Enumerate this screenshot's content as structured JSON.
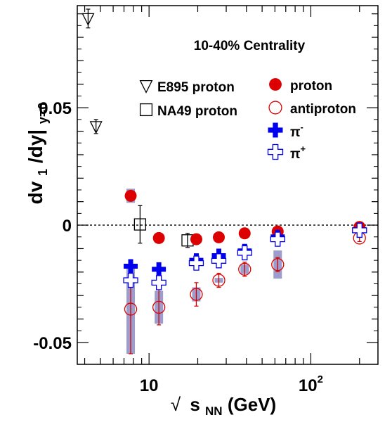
{
  "chart_data": {
    "type": "scatter",
    "title": "10-40% Centrality",
    "xlabel": {
      "root": "√",
      "main": "s",
      "sub": "NN",
      "unit": " (GeV)"
    },
    "ylabel": {
      "pre": "dv",
      "sub1": "1",
      "mid": "/dy|",
      "sub2": "y=0"
    },
    "x_scale": "log",
    "xlim": [
      3.6,
      260
    ],
    "ylim": [
      -0.0593,
      0.0935
    ],
    "x_tick_labels": [
      {
        "x": 10,
        "text": "10"
      },
      {
        "x": 100,
        "text": "10",
        "sup": "2"
      }
    ],
    "y_ticks": [
      {
        "y": 0.05,
        "text": "0.05"
      },
      {
        "y": 0,
        "text": "0"
      },
      {
        "y": -0.05,
        "text": "-0.05"
      }
    ],
    "zero_line": true,
    "legend": [
      {
        "marker": "tri-down-open",
        "text": "E895 proton"
      },
      {
        "marker": "square-open",
        "text": "NA49 proton"
      },
      {
        "marker": "circle-filled",
        "text": "proton"
      },
      {
        "marker": "circle-open",
        "text": "antiproton"
      },
      {
        "marker": "cross-filled",
        "text": "π",
        "sup": "-"
      },
      {
        "marker": "cross-open",
        "text": "π",
        "sup": "+"
      }
    ],
    "series": [
      {
        "name": "E895 proton",
        "marker": "tri-down-open",
        "color": "#000000",
        "points": [
          {
            "x": 4.2,
            "y": 0.088,
            "err": 0.004
          },
          {
            "x": 4.7,
            "y": 0.042,
            "err": 0.003
          }
        ]
      },
      {
        "name": "NA49 proton",
        "marker": "square-open",
        "color": "#000000",
        "points": [
          {
            "x": 8.8,
            "y": 0.0003,
            "err": 0.008
          },
          {
            "x": 17.3,
            "y": -0.0065,
            "err": 0.003
          }
        ]
      },
      {
        "name": "proton",
        "marker": "circle-filled",
        "color": "#dd0000",
        "points": [
          {
            "x": 7.7,
            "y": 0.0125,
            "err": 0.002,
            "sys": 0.003
          },
          {
            "x": 11.5,
            "y": -0.0055,
            "err": 0.001
          },
          {
            "x": 19.6,
            "y": -0.006,
            "err": 0.001
          },
          {
            "x": 27,
            "y": -0.0052,
            "err": 0.001
          },
          {
            "x": 39,
            "y": -0.0035,
            "err": 0.001
          },
          {
            "x": 62.4,
            "y": -0.0027,
            "err": 0.001
          },
          {
            "x": 200,
            "y": -0.0008,
            "err": 0.0005
          }
        ]
      },
      {
        "name": "antiproton",
        "marker": "circle-open",
        "color": "#dd0000",
        "points": [
          {
            "x": 7.7,
            "y": -0.0358,
            "err": 0.019,
            "sys": 0.019
          },
          {
            "x": 11.5,
            "y": -0.035,
            "err": 0.0075,
            "sys": 0.007
          },
          {
            "x": 19.6,
            "y": -0.0295,
            "err": 0.005,
            "sys": 0.003
          },
          {
            "x": 27,
            "y": -0.0235,
            "err": 0.003,
            "sys": 0.001
          },
          {
            "x": 39,
            "y": -0.0188,
            "err": 0.003,
            "sys": 0.002
          },
          {
            "x": 62.4,
            "y": -0.0168,
            "err": 0.003,
            "sys": 0.006
          },
          {
            "x": 200,
            "y": -0.0055,
            "err": 0.0015
          }
        ]
      },
      {
        "name": "π-",
        "marker": "cross-filled",
        "color": "#0000ee",
        "points": [
          {
            "x": 7.7,
            "y": -0.0175,
            "err": 0.001
          },
          {
            "x": 11.5,
            "y": -0.0188,
            "err": 0.001
          },
          {
            "x": 19.6,
            "y": -0.015,
            "err": 0.001
          },
          {
            "x": 27,
            "y": -0.013,
            "err": 0.001
          },
          {
            "x": 39,
            "y": -0.011,
            "err": 0.001
          },
          {
            "x": 62.4,
            "y": -0.005,
            "err": 0.001
          },
          {
            "x": 200,
            "y": -0.002,
            "err": 0.0005
          }
        ]
      },
      {
        "name": "π+",
        "marker": "cross-open",
        "color": "#0000ee",
        "points": [
          {
            "x": 7.7,
            "y": -0.0235,
            "err": 0.001
          },
          {
            "x": 11.5,
            "y": -0.0245,
            "err": 0.001
          },
          {
            "x": 19.6,
            "y": -0.0162,
            "err": 0.001
          },
          {
            "x": 27,
            "y": -0.0152,
            "err": 0.001
          },
          {
            "x": 39,
            "y": -0.0118,
            "err": 0.001
          },
          {
            "x": 62.4,
            "y": -0.006,
            "err": 0.001
          },
          {
            "x": 200,
            "y": -0.0022,
            "err": 0.0005
          }
        ]
      }
    ]
  }
}
